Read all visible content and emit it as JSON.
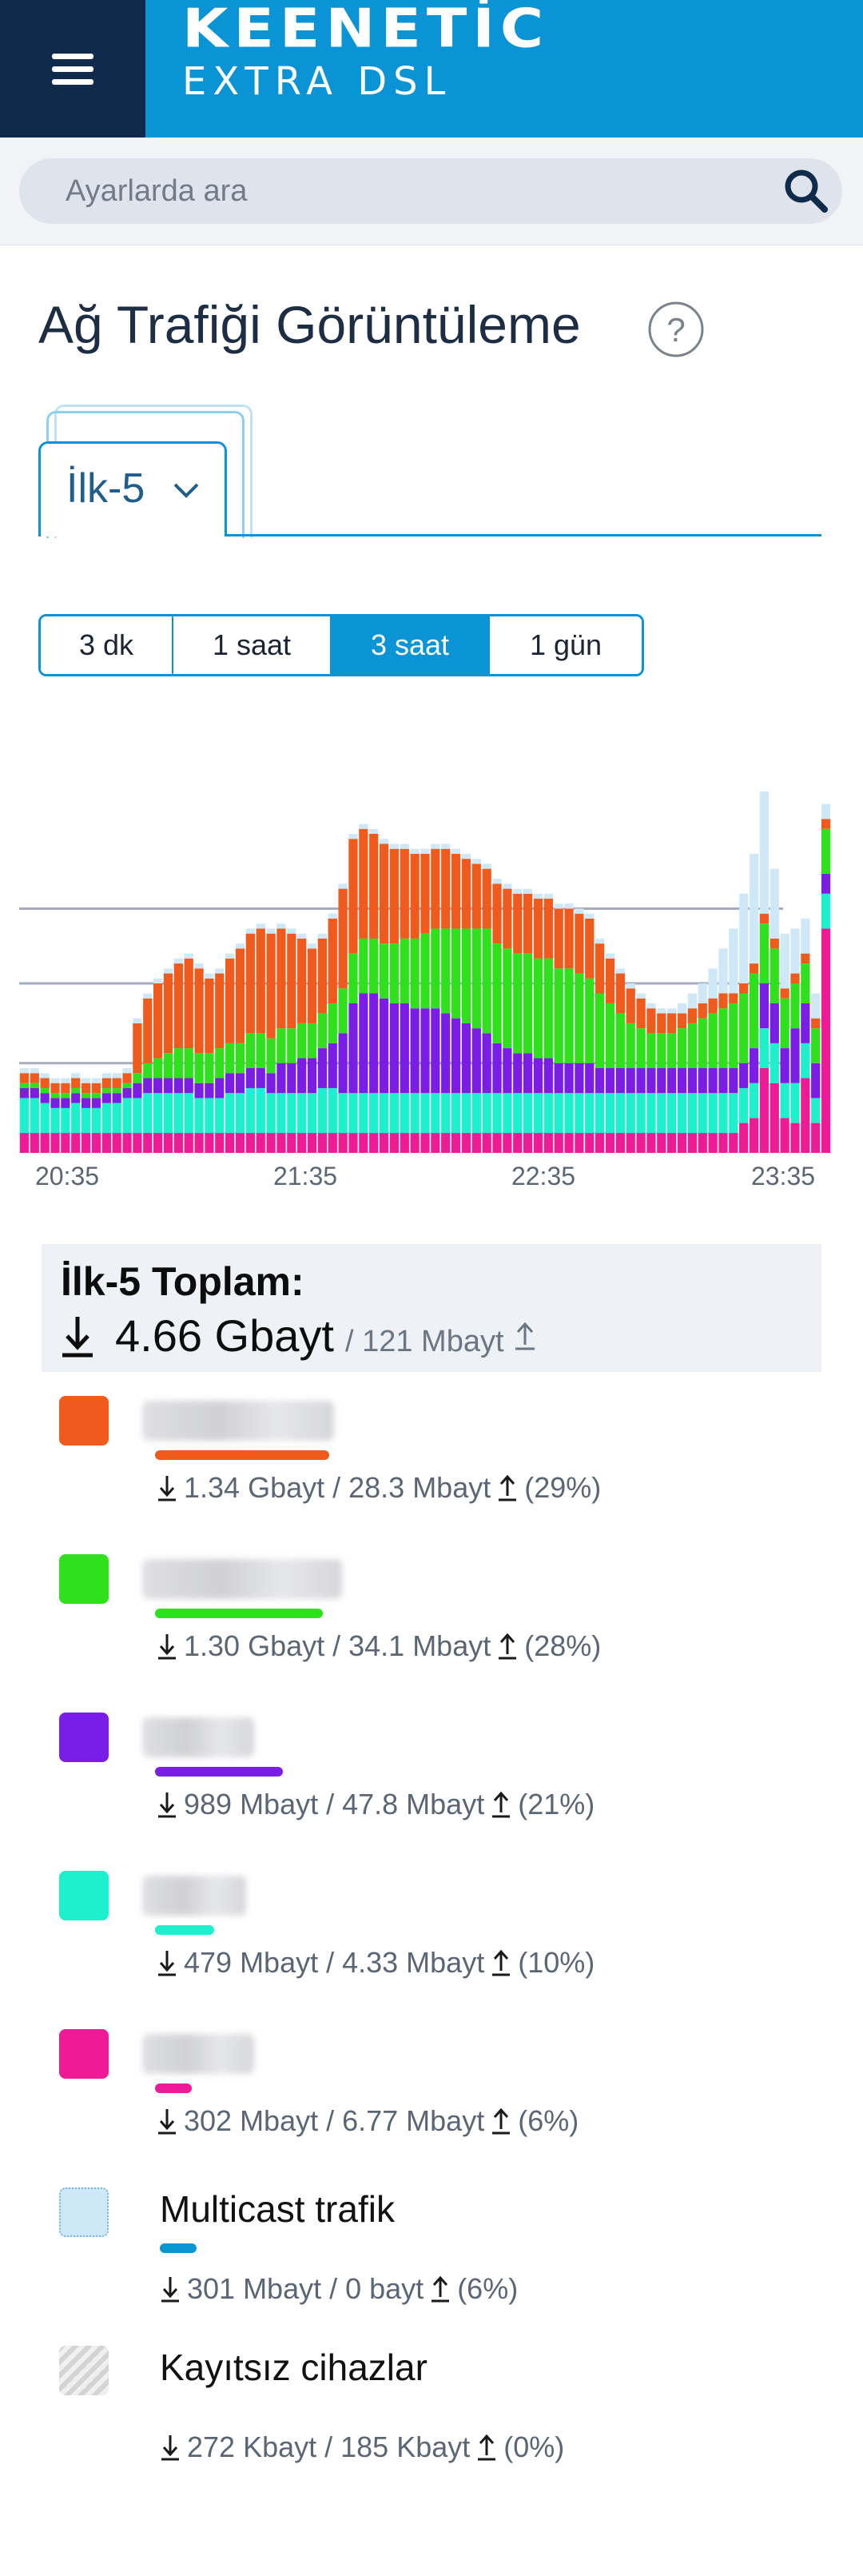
{
  "header": {
    "brand_line1": "KEENETİC",
    "brand_line2": "EXTRA DSL",
    "menu_icon": "hamburger-menu-icon"
  },
  "search": {
    "placeholder": "Ayarlarda ara",
    "icon": "search-icon"
  },
  "page": {
    "title": "Ağ Trafiği Görüntüleme",
    "help_icon": "question-circle-icon"
  },
  "tabs": {
    "active": "İlk-5"
  },
  "ranges": [
    {
      "label": "3 dk",
      "active": false
    },
    {
      "label": "1 saat",
      "active": false
    },
    {
      "label": "3 saat",
      "active": true
    },
    {
      "label": "1 gün",
      "active": false
    }
  ],
  "colors": {
    "accent": "#0a94d6",
    "orange": "#f05a1c",
    "green": "#2fe11d",
    "purple": "#7a1ee6",
    "teal": "#1cf0cc",
    "pink": "#ee1a96",
    "multicast": "#cfe8f8"
  },
  "chart_data": {
    "type": "area",
    "x_ticks": [
      "20:35",
      "21:35",
      "22:35",
      "23:35"
    ],
    "series": [
      {
        "color": "#ee1a96",
        "values": [
          8,
          8,
          8,
          8,
          8,
          8,
          8,
          8,
          8,
          8,
          8,
          8,
          8,
          8,
          8,
          8,
          8,
          8,
          8,
          8,
          8,
          8,
          8,
          8,
          8,
          8,
          8,
          8,
          8,
          8,
          8,
          8,
          8,
          8,
          8,
          8,
          8,
          8,
          8,
          8,
          8,
          8,
          8,
          8,
          8,
          8,
          8,
          8,
          8,
          8,
          8,
          8,
          8,
          8,
          8,
          8,
          8,
          8,
          8,
          8,
          8,
          8,
          8,
          8,
          8,
          8,
          8,
          8,
          8,
          8,
          12,
          14,
          34,
          28,
          14,
          12,
          30,
          12,
          90
        ]
      },
      {
        "color": "#1cf0cc",
        "values": [
          14,
          14,
          12,
          10,
          10,
          12,
          10,
          10,
          12,
          12,
          14,
          14,
          16,
          16,
          16,
          16,
          16,
          14,
          14,
          14,
          16,
          16,
          18,
          18,
          16,
          16,
          16,
          16,
          16,
          18,
          18,
          16,
          16,
          16,
          16,
          16,
          16,
          16,
          16,
          16,
          16,
          16,
          16,
          16,
          16,
          16,
          16,
          16,
          16,
          16,
          16,
          16,
          16,
          16,
          16,
          16,
          16,
          16,
          16,
          16,
          16,
          16,
          16,
          16,
          16,
          16,
          16,
          16,
          16,
          16,
          14,
          14,
          16,
          16,
          14,
          16,
          14,
          10,
          14
        ]
      },
      {
        "color": "#7a1ee6",
        "values": [
          4,
          4,
          4,
          4,
          4,
          4,
          4,
          4,
          4,
          4,
          4,
          6,
          6,
          6,
          6,
          6,
          6,
          6,
          6,
          8,
          8,
          8,
          8,
          8,
          8,
          12,
          12,
          14,
          14,
          16,
          18,
          24,
          36,
          40,
          40,
          38,
          36,
          36,
          34,
          34,
          34,
          32,
          30,
          28,
          26,
          24,
          20,
          18,
          16,
          16,
          14,
          14,
          12,
          12,
          12,
          12,
          10,
          10,
          10,
          10,
          10,
          10,
          10,
          10,
          10,
          10,
          10,
          10,
          10,
          10,
          10,
          14,
          18,
          16,
          14,
          22,
          16,
          14,
          8
        ]
      },
      {
        "color": "#2fe11d",
        "values": [
          2,
          2,
          2,
          2,
          2,
          2,
          2,
          2,
          2,
          2,
          2,
          4,
          6,
          8,
          10,
          12,
          12,
          12,
          12,
          12,
          12,
          12,
          14,
          14,
          14,
          14,
          14,
          14,
          14,
          14,
          16,
          18,
          20,
          22,
          22,
          22,
          24,
          26,
          28,
          30,
          32,
          34,
          36,
          38,
          40,
          42,
          40,
          40,
          40,
          40,
          40,
          40,
          38,
          38,
          36,
          34,
          30,
          26,
          22,
          18,
          16,
          14,
          14,
          14,
          16,
          18,
          20,
          22,
          24,
          26,
          28,
          30,
          24,
          22,
          20,
          18,
          16,
          14,
          18
        ]
      },
      {
        "color": "#f05a1c",
        "values": [
          4,
          4,
          4,
          4,
          4,
          4,
          4,
          4,
          4,
          4,
          4,
          20,
          26,
          30,
          32,
          34,
          36,
          34,
          30,
          30,
          34,
          38,
          40,
          42,
          42,
          40,
          38,
          34,
          30,
          30,
          34,
          40,
          46,
          44,
          42,
          40,
          38,
          36,
          34,
          32,
          32,
          32,
          30,
          28,
          26,
          24,
          24,
          24,
          24,
          24,
          24,
          24,
          24,
          24,
          24,
          24,
          20,
          18,
          16,
          14,
          12,
          10,
          8,
          8,
          6,
          6,
          6,
          6,
          6,
          4,
          4,
          4,
          4,
          4,
          4,
          4,
          4,
          4,
          4
        ]
      },
      {
        "color": "#cfe8f8",
        "values": [
          2,
          2,
          2,
          2,
          2,
          2,
          2,
          2,
          2,
          2,
          2,
          2,
          2,
          2,
          2,
          2,
          2,
          2,
          2,
          2,
          2,
          2,
          2,
          2,
          2,
          2,
          2,
          2,
          2,
          2,
          2,
          2,
          2,
          2,
          2,
          2,
          2,
          2,
          2,
          2,
          2,
          2,
          2,
          2,
          2,
          2,
          2,
          2,
          2,
          2,
          2,
          2,
          2,
          2,
          2,
          2,
          2,
          2,
          2,
          2,
          2,
          2,
          2,
          2,
          4,
          6,
          8,
          12,
          18,
          26,
          36,
          44,
          50,
          28,
          22,
          18,
          14,
          10,
          6
        ]
      }
    ],
    "ylim": [
      0,
      145
    ],
    "grid": true
  },
  "summary": {
    "title": "İlk-5 Toplam:",
    "download": "4.66 Gbayt",
    "upload": "/ 121 Mbayt"
  },
  "legend": [
    {
      "color": "#f05a1c",
      "name": "",
      "download": "1.34 Gbayt / 28.3 Mbayt",
      "pct": "(29%)"
    },
    {
      "color": "#2fe11d",
      "name": "",
      "download": "1.30 Gbayt / 34.1 Mbayt",
      "pct": "(28%)"
    },
    {
      "color": "#7a1ee6",
      "name": "",
      "download": "989 Mbayt / 47.8 Mbayt",
      "pct": "(21%)"
    },
    {
      "color": "#1cf0cc",
      "name": "",
      "download": "479 Mbayt / 4.33 Mbayt",
      "pct": "(10%)"
    },
    {
      "color": "#ee1a96",
      "name": "",
      "download": "302 Mbayt / 6.77 Mbayt",
      "pct": "(6%)"
    },
    {
      "color": "#cfe8f8",
      "name": "Multicast trafik",
      "download": "301 Mbayt / 0 bayt",
      "pct": "(6%)"
    },
    {
      "color": "#dddddd",
      "name": "Kayıtsız cihazlar",
      "download": "272 Kbayt / 185 Kbayt",
      "pct": "(0%)"
    }
  ]
}
